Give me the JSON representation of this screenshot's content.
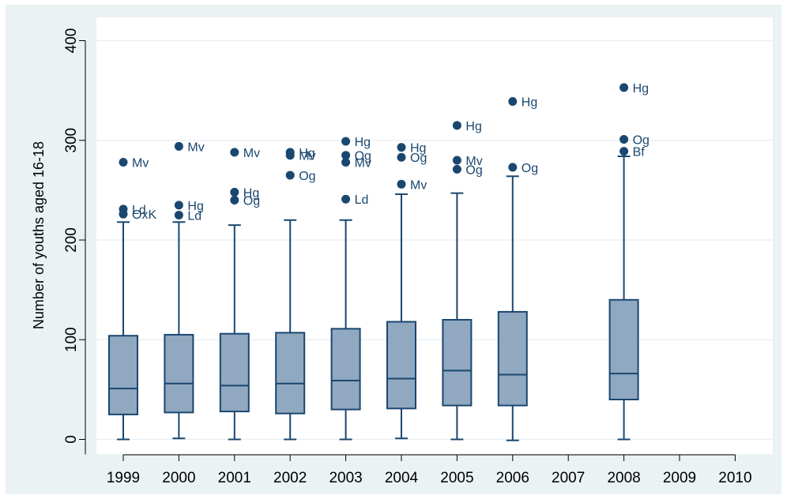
{
  "chart_data": {
    "type": "boxplot",
    "ylabel": "Number of youths aged 16-18",
    "ylim": [
      -15,
      430
    ],
    "yticks": [
      0,
      100,
      200,
      300,
      400
    ],
    "grid": true,
    "legend": "none",
    "colors": {
      "box_fill": "#90a8c0",
      "box_stroke": "#1a476f",
      "marker": "#1a476f",
      "grid": "#ffffff",
      "panel": "#ffffff",
      "background": "#eaf2f3"
    },
    "categories": [
      "1999",
      "2000",
      "2001",
      "2002",
      "2003",
      "2004",
      "2005",
      "2006",
      "2007",
      "2008",
      "2009",
      "2010"
    ],
    "boxes": [
      {
        "category": "1999",
        "min": 0,
        "q1": 25,
        "median": 51,
        "q3": 104,
        "max": 218,
        "outliers": [
          {
            "value": 278,
            "label": "Mv"
          },
          {
            "value": 231,
            "label": "Ld"
          },
          {
            "value": 226,
            "label": "OxK"
          }
        ]
      },
      {
        "category": "2000",
        "min": 1,
        "q1": 27,
        "median": 56,
        "q3": 105,
        "max": 218,
        "outliers": [
          {
            "value": 294,
            "label": "Mv"
          },
          {
            "value": 235,
            "label": "Hg"
          },
          {
            "value": 225,
            "label": "Ld"
          }
        ]
      },
      {
        "category": "2001",
        "min": 0,
        "q1": 28,
        "median": 54,
        "q3": 106,
        "max": 215,
        "outliers": [
          {
            "value": 288,
            "label": "Mv"
          },
          {
            "value": 248,
            "label": "Hg"
          },
          {
            "value": 240,
            "label": "Og"
          }
        ]
      },
      {
        "category": "2002",
        "min": 0,
        "q1": 26,
        "median": 56,
        "q3": 107,
        "max": 220,
        "outliers": [
          {
            "value": 288,
            "label": "Hg"
          },
          {
            "value": 285,
            "label": "Mv"
          },
          {
            "value": 265,
            "label": "Og"
          }
        ]
      },
      {
        "category": "2003",
        "min": 0,
        "q1": 30,
        "median": 59,
        "q3": 111,
        "max": 220,
        "outliers": [
          {
            "value": 299,
            "label": "Hg"
          },
          {
            "value": 285,
            "label": "Og"
          },
          {
            "value": 278,
            "label": "Mv"
          },
          {
            "value": 241,
            "label": "Ld"
          }
        ]
      },
      {
        "category": "2004",
        "min": 1,
        "q1": 31,
        "median": 61,
        "q3": 118,
        "max": 246,
        "outliers": [
          {
            "value": 293,
            "label": "Hg"
          },
          {
            "value": 283,
            "label": "Og"
          },
          {
            "value": 256,
            "label": "Mv"
          }
        ]
      },
      {
        "category": "2005",
        "min": 0,
        "q1": 34,
        "median": 69,
        "q3": 120,
        "max": 247,
        "outliers": [
          {
            "value": 315,
            "label": "Hg"
          },
          {
            "value": 280,
            "label": "Mv"
          },
          {
            "value": 271,
            "label": "Og"
          }
        ]
      },
      {
        "category": "2006",
        "min": -1,
        "q1": 34,
        "median": 65,
        "q3": 128,
        "max": 264,
        "outliers": [
          {
            "value": 339,
            "label": "Hg"
          },
          {
            "value": 273,
            "label": "Og"
          }
        ]
      },
      {
        "category": "2008",
        "min": 0,
        "q1": 40,
        "median": 66,
        "q3": 140,
        "max": 284,
        "outliers": [
          {
            "value": 353,
            "label": "Hg"
          },
          {
            "value": 301,
            "label": "Og"
          },
          {
            "value": 289,
            "label": "Bf"
          }
        ]
      }
    ]
  }
}
